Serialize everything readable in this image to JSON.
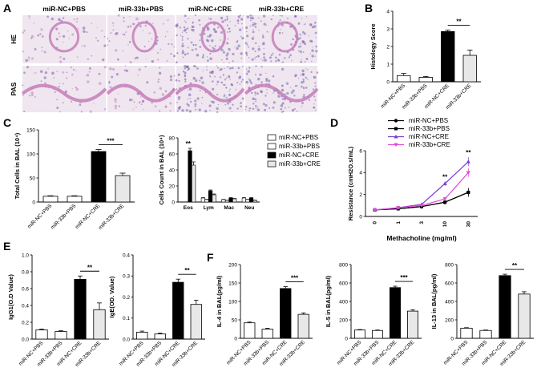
{
  "panel_labels": {
    "A": "A",
    "B": "B",
    "C": "C",
    "D": "D",
    "E": "E",
    "F": "F"
  },
  "histology": {
    "columns": [
      "miR-NC+PBS",
      "miR-33b+PBS",
      "miR-NC+CRE",
      "miR-33b+CRE"
    ],
    "rows": [
      "HE",
      "PAS"
    ],
    "tissue_colors": {
      "background": "#efe6ef",
      "stain_pink": "#c77cb9",
      "stain_purple": "#7a5aa8",
      "stain_blue": "#6a73b8"
    }
  },
  "sig": {
    "double": "**",
    "triple": "***"
  },
  "chart_data": [
    {
      "id": "B",
      "type": "bar",
      "categories": [
        "miR-NC+PBS",
        "miR-33b+PBS",
        "miR-NC+CRE",
        "miR-33b+CRE"
      ],
      "values": [
        0.35,
        0.25,
        2.85,
        1.5
      ],
      "errors": [
        0.12,
        0.05,
        0.08,
        0.3
      ],
      "ylabel": "Histology Score",
      "ylim": [
        0,
        4
      ],
      "yticks": [
        0,
        1,
        2,
        3,
        4
      ],
      "ytick_labels": [
        "0",
        "1",
        "2",
        "3",
        "4"
      ],
      "sig": {
        "text": "**",
        "from": 2,
        "to": 3
      }
    },
    {
      "id": "C1",
      "type": "bar",
      "categories": [
        "miR-NC+PBS",
        "miR-33b+PBS",
        "miR-NC+CRE",
        "miR-33b+CRE"
      ],
      "values": [
        12,
        12,
        105,
        55
      ],
      "errors": [
        1,
        1,
        4,
        5
      ],
      "ylabel": "Total Cells in BAL (10⁴)",
      "ylim": [
        0,
        150
      ],
      "yticks": [
        0,
        50,
        100,
        150
      ],
      "ytick_labels": [
        "0",
        "50",
        "100",
        "150"
      ],
      "sig": {
        "text": "***",
        "from": 2,
        "to": 3
      }
    },
    {
      "id": "C2",
      "type": "bar",
      "categories": [
        "Eos",
        "Lym",
        "Mac",
        "Neu"
      ],
      "series": [
        {
          "name": "miR-NC+PBS",
          "values": [
            0,
            5,
            3,
            5
          ]
        },
        {
          "name": "miR-33b+PBS",
          "values": [
            0,
            3,
            2,
            3
          ]
        },
        {
          "name": "miR-NC+CRE",
          "values": [
            64,
            14,
            5,
            5
          ]
        },
        {
          "name": "miR-33b+CRE",
          "values": [
            46,
            9,
            4,
            2
          ]
        }
      ],
      "errors": [
        [
          0,
          0.5,
          0.3,
          0.5
        ],
        [
          0,
          0.3,
          0.2,
          0.3
        ],
        [
          3,
          1,
          0.5,
          0.5
        ],
        [
          4,
          1,
          0.4,
          0.3
        ]
      ],
      "ylabel": "Cells Count  in BAL (10⁴)",
      "ylim": [
        0,
        80
      ],
      "yticks": [
        0,
        20,
        40,
        60,
        80
      ],
      "ytick_labels": [
        "0",
        "20",
        "40",
        "60",
        "80"
      ],
      "legend": "right",
      "sig": {
        "text": "**",
        "category": 0
      }
    },
    {
      "id": "D",
      "type": "line",
      "x": [
        "0",
        "1",
        "3",
        "10",
        "30"
      ],
      "series": [
        {
          "name": "miR-NC+PBS",
          "values": [
            0.6,
            0.7,
            0.9,
            1.3,
            2.2
          ],
          "color": "#000000",
          "marker": "circle"
        },
        {
          "name": "miR-33b+PBS",
          "values": [
            0.6,
            0.7,
            0.9,
            1.3,
            2.2
          ],
          "color": "#000000",
          "marker": "square"
        },
        {
          "name": "miR-NC+CRE",
          "values": [
            0.6,
            0.8,
            1.1,
            3.0,
            5.0
          ],
          "color": "#7b3fd4",
          "marker": "triangle"
        },
        {
          "name": "miR-33b+CRE",
          "values": [
            0.6,
            0.8,
            1.0,
            1.6,
            4.0
          ],
          "color": "#e04ad6",
          "marker": "triangle-down"
        }
      ],
      "errors": [
        0.05,
        0.05,
        0.1,
        0.2,
        0.4
      ],
      "xlabel": "Methacholine (mg/ml)",
      "ylabel": "Resistance (cmH2O.s/mL)",
      "ylim": [
        0,
        6
      ],
      "yticks": [
        0,
        2,
        4,
        6
      ],
      "ytick_labels": [
        "0",
        "2",
        "4",
        "6"
      ],
      "legend": "top",
      "sig": [
        {
          "text": "**",
          "index": 3
        },
        {
          "text": "**",
          "index": 4
        }
      ]
    },
    {
      "id": "E1",
      "type": "bar",
      "categories": [
        "miR-NC+PBS",
        "miR-33b+PBS",
        "miR-NC+CRE",
        "miR-33b+CRE"
      ],
      "values": [
        0.11,
        0.09,
        0.71,
        0.35
      ],
      "errors": [
        0.01,
        0.01,
        0.04,
        0.08
      ],
      "ylabel": "IgG1(O.D Value)",
      "ylim": [
        0,
        1.0
      ],
      "yticks": [
        0,
        0.2,
        0.4,
        0.6,
        0.8,
        1.0
      ],
      "ytick_labels": [
        "0.0",
        "0.2",
        "0.4",
        "0.6",
        "0.8",
        "1.0"
      ],
      "sig": {
        "text": "**",
        "from": 2,
        "to": 3
      }
    },
    {
      "id": "E2",
      "type": "bar",
      "categories": [
        "miR-NC+PBS",
        "miR-33b+PBS",
        "miR-NC+CRE",
        "miR-33b+CRE"
      ],
      "values": [
        0.033,
        0.025,
        0.27,
        0.165
      ],
      "errors": [
        0.005,
        0.004,
        0.015,
        0.02
      ],
      "ylabel": "IgE(OD. Value)",
      "ylim": [
        0,
        0.4
      ],
      "yticks": [
        0,
        0.1,
        0.2,
        0.3,
        0.4
      ],
      "ytick_labels": [
        "0.0",
        "0.1",
        "0.2",
        "0.3",
        "0.4"
      ],
      "sig": {
        "text": "**",
        "from": 2,
        "to": 3
      }
    },
    {
      "id": "F1",
      "type": "bar",
      "categories": [
        "miR-NC+PBS",
        "miR-33b+PBS",
        "miR-NC+CRE",
        "miR-33b+CRE"
      ],
      "values": [
        42,
        25,
        135,
        65
      ],
      "errors": [
        2,
        2,
        5,
        4
      ],
      "ylabel": "IL-4 in BAL(pg/ml)",
      "ylim": [
        0,
        200
      ],
      "yticks": [
        0,
        50,
        100,
        150,
        200
      ],
      "ytick_labels": [
        "0",
        "50",
        "100",
        "150",
        "200"
      ],
      "sig": {
        "text": "***",
        "from": 2,
        "to": 3
      }
    },
    {
      "id": "F2",
      "type": "bar",
      "categories": [
        "miR-NC+PBS",
        "miR-33b+PBS",
        "miR-NC+CRE",
        "miR-33b+CRE"
      ],
      "values": [
        90,
        85,
        550,
        295
      ],
      "errors": [
        5,
        5,
        15,
        15
      ],
      "ylabel": "IL-5 in BAL(pg/ml)",
      "ylim": [
        0,
        800
      ],
      "yticks": [
        0,
        200,
        400,
        600,
        800
      ],
      "ytick_labels": [
        "0",
        "200",
        "400",
        "600",
        "800"
      ],
      "sig": {
        "text": "***",
        "from": 2,
        "to": 3
      }
    },
    {
      "id": "F3",
      "type": "bar",
      "categories": [
        "miR-NC+PBS",
        "miR-33b+PBS",
        "miR-NC+CRE",
        "miR-33b+CRE"
      ],
      "values": [
        110,
        85,
        680,
        480
      ],
      "errors": [
        5,
        5,
        15,
        25
      ],
      "ylabel": "IL-13 in BAL(pg/ml)",
      "ylim": [
        0,
        800
      ],
      "yticks": [
        0,
        200,
        400,
        600,
        800
      ],
      "ytick_labels": [
        "0",
        "200",
        "400",
        "600",
        "800"
      ],
      "sig": {
        "text": "**",
        "from": 2,
        "to": 3
      }
    }
  ]
}
